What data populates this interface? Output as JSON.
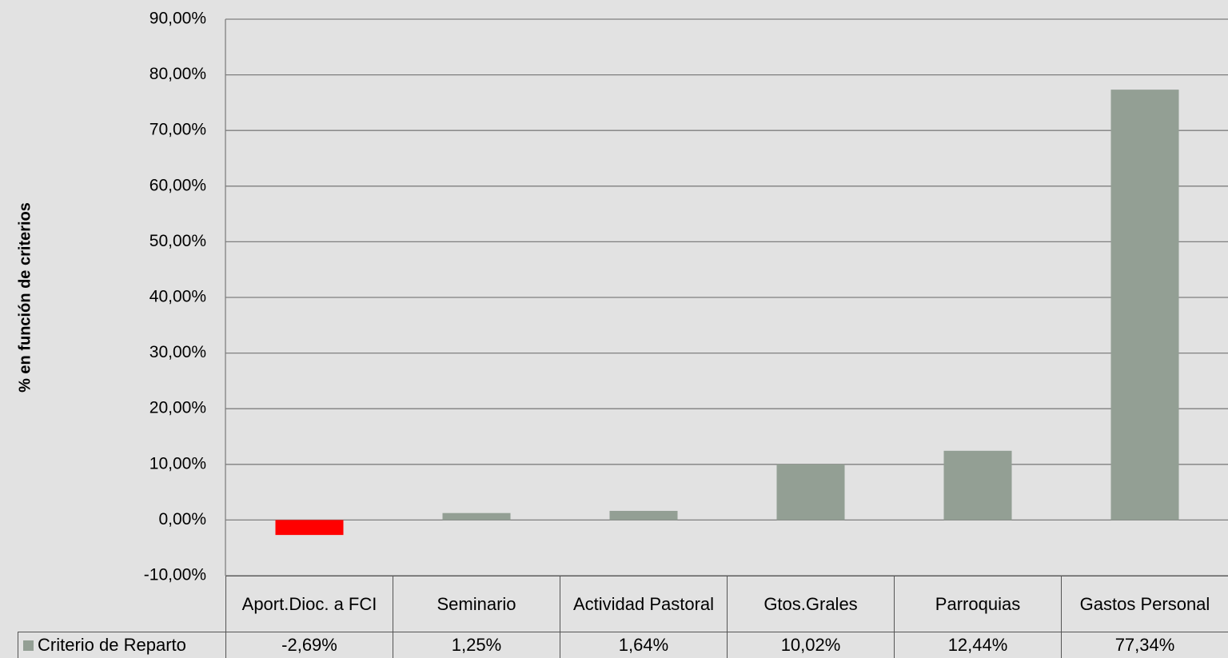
{
  "chart_data": {
    "type": "bar",
    "ylabel": "% en función de criterios",
    "categories": [
      "Aport.Dioc. a FCI",
      "Seminario",
      "Actividad Pastoral",
      "Gtos.Grales",
      "Parroquias",
      "Gastos Personal"
    ],
    "series": [
      {
        "name": "Criterio de Reparto",
        "color": "#939f94",
        "negative_color": "#ff0000",
        "values": [
          -2.69,
          1.25,
          1.64,
          10.02,
          12.44,
          77.34
        ],
        "value_labels": [
          "-2,69%",
          "1,25%",
          "1,64%",
          "10,02%",
          "12,44%",
          "77,34%"
        ]
      }
    ],
    "ylim": [
      -10,
      90
    ],
    "yticks": [
      {
        "value": -10,
        "label": "-10,00%"
      },
      {
        "value": 0,
        "label": "0,00%"
      },
      {
        "value": 10,
        "label": "10,00%"
      },
      {
        "value": 20,
        "label": "20,00%"
      },
      {
        "value": 30,
        "label": "30,00%"
      },
      {
        "value": 40,
        "label": "40,00%"
      },
      {
        "value": 50,
        "label": "50,00%"
      },
      {
        "value": 60,
        "label": "60,00%"
      },
      {
        "value": 70,
        "label": "70,00%"
      },
      {
        "value": 80,
        "label": "80,00%"
      },
      {
        "value": 90,
        "label": "90,00%"
      }
    ],
    "grid": true
  }
}
